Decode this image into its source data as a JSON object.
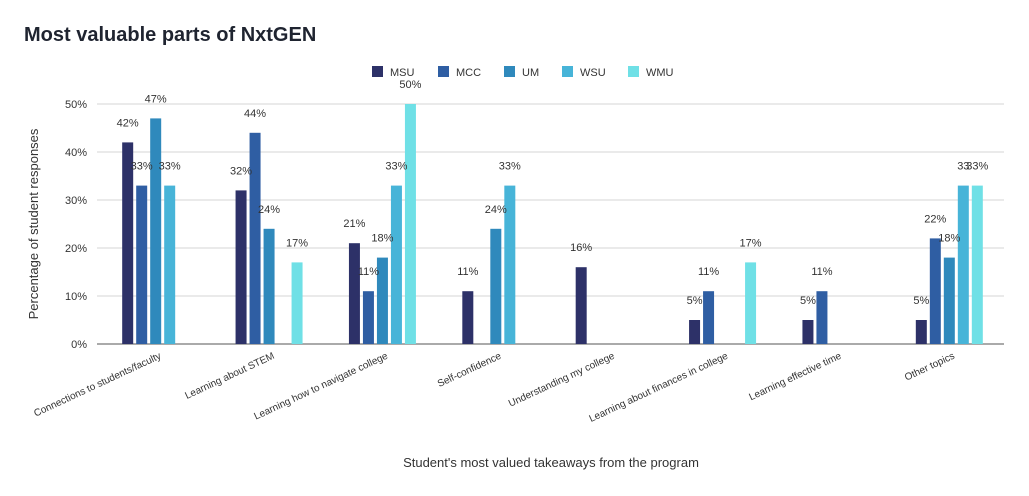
{
  "chart_data": {
    "type": "bar",
    "title": "Most valuable parts of NxtGEN",
    "xlabel": "Student's most valued takeaways from the program",
    "ylabel": "Percentage of student responses",
    "ylim": [
      0,
      50
    ],
    "yticks": [
      "0%",
      "10%",
      "20%",
      "30%",
      "40%",
      "50%"
    ],
    "grid": true,
    "legend_position": "top",
    "categories": [
      "Connections to students/faculty",
      "Learning about STEM",
      "Learning how to navigate college",
      "Self-confidence",
      "Understanding my college",
      "Learning about finances in college",
      "Learning effective time",
      "Other topics"
    ],
    "series": [
      {
        "name": "MSU",
        "color": "#2d3168",
        "values": [
          42,
          32,
          21,
          11,
          16,
          5,
          5,
          5
        ],
        "labels": [
          "42%",
          "32%",
          "21%",
          "11%",
          "16%",
          "5%",
          "5%",
          "5%"
        ]
      },
      {
        "name": "MCC",
        "color": "#2f5ea3",
        "values": [
          33,
          44,
          11,
          null,
          null,
          11,
          11,
          22
        ],
        "labels": [
          "33%",
          "44%",
          "11%",
          "",
          "",
          "11%",
          "11%",
          "22%"
        ]
      },
      {
        "name": "UM",
        "color": "#2f89bc",
        "values": [
          47,
          24,
          18,
          24,
          null,
          null,
          null,
          18
        ],
        "labels": [
          "47%",
          "24%",
          "18%",
          "24%",
          "",
          "",
          "",
          "18%"
        ]
      },
      {
        "name": "WSU",
        "color": "#47b4d8",
        "values": [
          33,
          null,
          33,
          33,
          null,
          null,
          null,
          33
        ],
        "labels": [
          "33%",
          "",
          "33%",
          "33%",
          "",
          "",
          "",
          "33"
        ]
      },
      {
        "name": "WMU",
        "color": "#6fe0e6",
        "values": [
          null,
          17,
          50,
          null,
          null,
          17,
          null,
          33
        ],
        "labels": [
          "",
          "17%",
          "50%",
          "",
          "",
          "17%",
          "",
          "33%"
        ]
      }
    ]
  }
}
